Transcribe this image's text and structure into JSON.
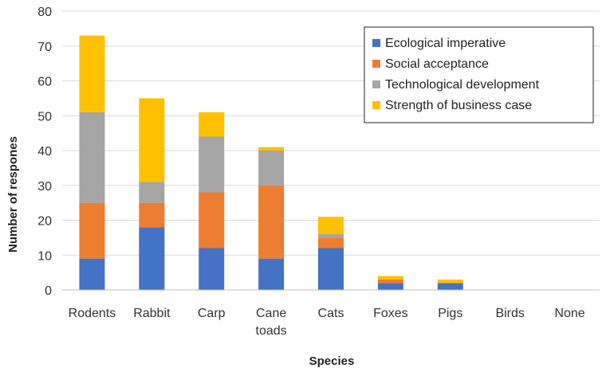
{
  "chart_data": {
    "type": "bar",
    "stacked": true,
    "title": "",
    "xlabel": "Species",
    "ylabel": "Number of respones",
    "ylim": [
      0,
      80
    ],
    "yticks": [
      0,
      10,
      20,
      30,
      40,
      50,
      60,
      70,
      80
    ],
    "grid": true,
    "legend_position": "top-right",
    "categories": [
      [
        "Rodents"
      ],
      [
        "Rabbit"
      ],
      [
        "Carp"
      ],
      [
        "Cane",
        "toads"
      ],
      [
        "Cats"
      ],
      [
        "Foxes"
      ],
      [
        "Pigs"
      ],
      [
        "Birds"
      ],
      [
        "None"
      ]
    ],
    "series": [
      {
        "name": "Ecological imperative",
        "color": "#4472C4",
        "values": [
          9,
          18,
          12,
          9,
          12,
          2,
          2,
          0,
          0
        ]
      },
      {
        "name": "Social acceptance",
        "color": "#ED7D31",
        "values": [
          16,
          7,
          16,
          21,
          3,
          1,
          0,
          0,
          0
        ]
      },
      {
        "name": "Technological development",
        "color": "#A5A5A5",
        "values": [
          26,
          6,
          16,
          10,
          1,
          0,
          0,
          0,
          0
        ]
      },
      {
        "name": "Strength of business case",
        "color": "#FFC000",
        "values": [
          22,
          24,
          7,
          1,
          5,
          1,
          1,
          0,
          0
        ]
      }
    ]
  }
}
